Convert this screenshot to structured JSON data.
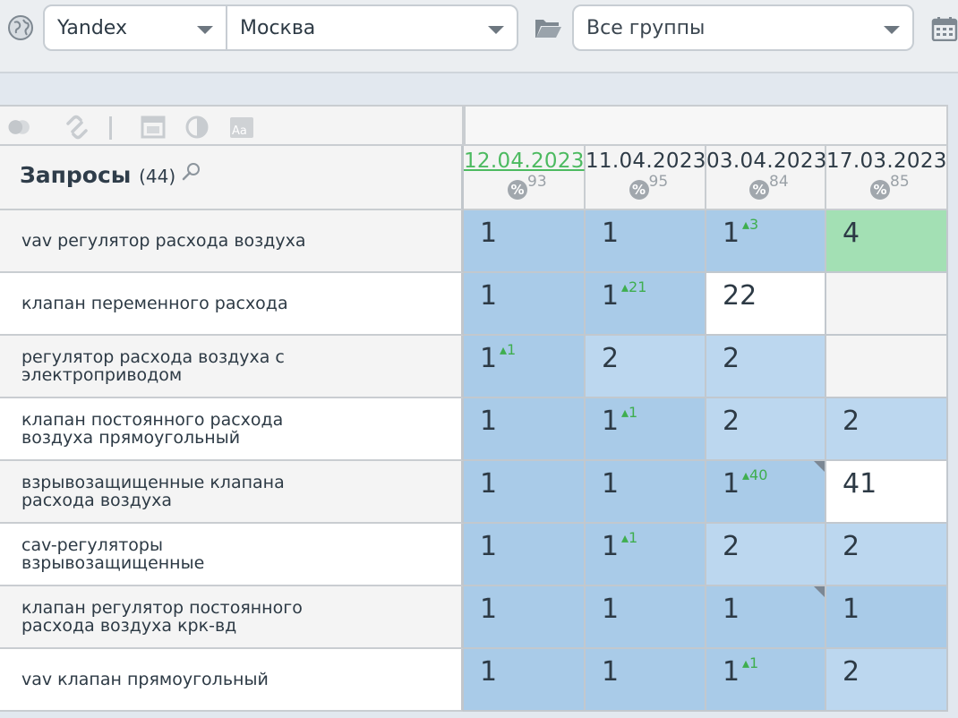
{
  "toolbar": {
    "engine": "Yandex",
    "region": "Москва",
    "group": "Все группы"
  },
  "table": {
    "queries_title": "Запросы",
    "queries_count": "(44)",
    "dates": [
      {
        "label": "12.04.2023",
        "pct": "93",
        "active": true
      },
      {
        "label": "11.04.2023",
        "pct": "95",
        "active": false
      },
      {
        "label": "03.04.2023",
        "pct": "84",
        "active": false
      },
      {
        "label": "17.03.2023",
        "pct": "85",
        "active": false
      }
    ],
    "rows": [
      {
        "query": "vav регулятор расхода воздуха",
        "bg": "#f4f4f4",
        "cells": [
          {
            "pos": "1",
            "delta": "",
            "color": "#a9cbe8"
          },
          {
            "pos": "1",
            "delta": "",
            "color": "#a9cbe8"
          },
          {
            "pos": "1",
            "delta": "3",
            "color": "#a9cbe8"
          },
          {
            "pos": "4",
            "delta": "",
            "color": "#a3e0b4"
          }
        ]
      },
      {
        "query": "клапан переменного расхода",
        "bg": "#ffffff",
        "cells": [
          {
            "pos": "1",
            "delta": "",
            "color": "#a9cbe8"
          },
          {
            "pos": "1",
            "delta": "21",
            "color": "#a9cbe8"
          },
          {
            "pos": "22",
            "delta": "",
            "color": "#ffffff"
          },
          {
            "pos": "",
            "delta": "",
            "color": "#f4f4f4"
          }
        ]
      },
      {
        "query": "регулятор расхода воздуха с\nэлектроприводом",
        "bg": "#f4f4f4",
        "cells": [
          {
            "pos": "1",
            "delta": "1",
            "color": "#a9cbe8"
          },
          {
            "pos": "2",
            "delta": "",
            "color": "#bcd7ef"
          },
          {
            "pos": "2",
            "delta": "",
            "color": "#bcd7ef"
          },
          {
            "pos": "",
            "delta": "",
            "color": "#f4f4f4"
          }
        ]
      },
      {
        "query": "клапан постоянного расхода\nвоздуха прямоугольный",
        "bg": "#ffffff",
        "cells": [
          {
            "pos": "1",
            "delta": "",
            "color": "#a9cbe8"
          },
          {
            "pos": "1",
            "delta": "1",
            "color": "#a9cbe8"
          },
          {
            "pos": "2",
            "delta": "",
            "color": "#bcd7ef"
          },
          {
            "pos": "2",
            "delta": "",
            "color": "#bcd7ef"
          }
        ]
      },
      {
        "query": "взрывозащищенные клапана\nрасхода воздуха",
        "bg": "#f4f4f4",
        "cells": [
          {
            "pos": "1",
            "delta": "",
            "color": "#a9cbe8"
          },
          {
            "pos": "1",
            "delta": "",
            "color": "#a9cbe8"
          },
          {
            "pos": "1",
            "delta": "40",
            "color": "#a9cbe8",
            "corner": true
          },
          {
            "pos": "41",
            "delta": "",
            "color": "#ffffff"
          }
        ]
      },
      {
        "query": "cav-регуляторы\nвзрывозащищенные",
        "bg": "#ffffff",
        "cells": [
          {
            "pos": "1",
            "delta": "",
            "color": "#a9cbe8"
          },
          {
            "pos": "1",
            "delta": "1",
            "color": "#a9cbe8"
          },
          {
            "pos": "2",
            "delta": "",
            "color": "#bcd7ef"
          },
          {
            "pos": "2",
            "delta": "",
            "color": "#bcd7ef"
          }
        ]
      },
      {
        "query": "клапан регулятор постоянного\nрасхода воздуха крк-вд",
        "bg": "#f4f4f4",
        "cells": [
          {
            "pos": "1",
            "delta": "",
            "color": "#a9cbe8"
          },
          {
            "pos": "1",
            "delta": "",
            "color": "#a9cbe8"
          },
          {
            "pos": "1",
            "delta": "",
            "color": "#a9cbe8",
            "corner": true
          },
          {
            "pos": "1",
            "delta": "",
            "color": "#a9cbe8"
          }
        ]
      },
      {
        "query": "vav клапан прямоугольный",
        "bg": "#ffffff",
        "cells": [
          {
            "pos": "1",
            "delta": "",
            "color": "#a9cbe8"
          },
          {
            "pos": "1",
            "delta": "",
            "color": "#a9cbe8"
          },
          {
            "pos": "1",
            "delta": "1",
            "color": "#a9cbe8"
          },
          {
            "pos": "2",
            "delta": "",
            "color": "#bcd7ef"
          }
        ]
      }
    ]
  },
  "icons": {
    "globe": "globe-icon",
    "folder": "folder-icon",
    "calendar": "calendar-icon",
    "toggle": "toggle-icon",
    "link": "link-icon",
    "window": "window-icon",
    "contrast": "contrast-icon",
    "font": "font-icon",
    "search": "search-icon",
    "percent": "percent-icon"
  }
}
